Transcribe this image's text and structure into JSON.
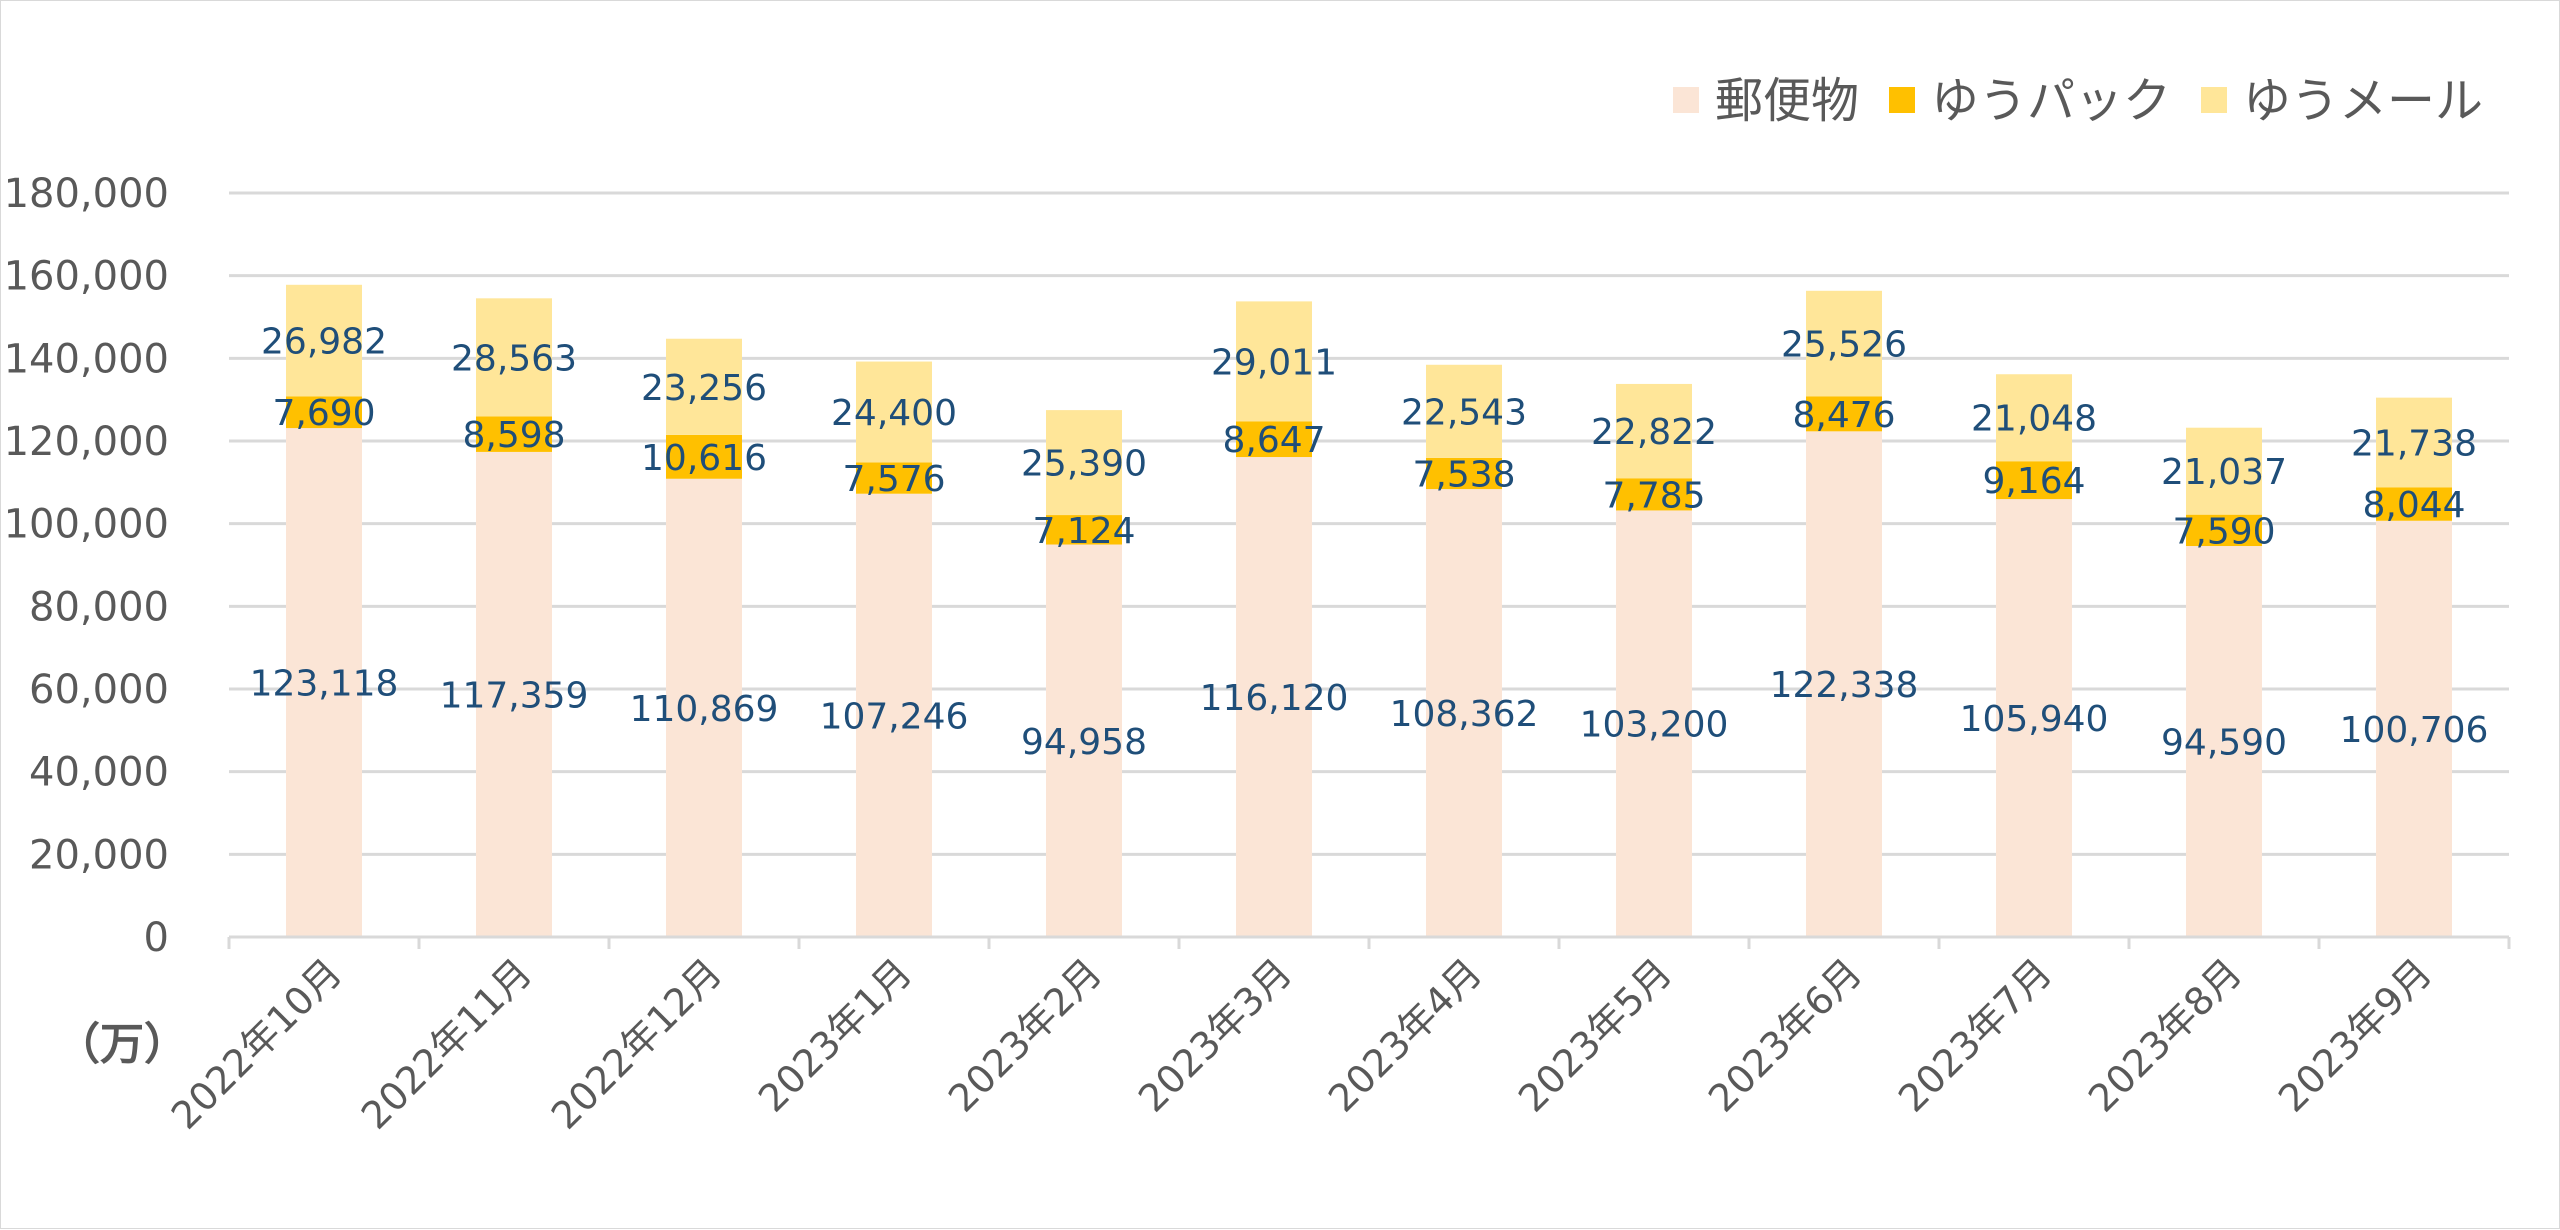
{
  "chart_data": {
    "type": "bar",
    "stacked": true,
    "unit_label": "（万）",
    "categories": [
      "2022年10月",
      "2022年11月",
      "2022年12月",
      "2023年1月",
      "2023年2月",
      "2023年3月",
      "2023年4月",
      "2023年5月",
      "2023年6月",
      "2023年7月",
      "2023年8月",
      "2023年9月"
    ],
    "series": [
      {
        "name": "郵便物",
        "color": "#fbe5d6",
        "values": [
          123118,
          117359,
          110869,
          107246,
          94958,
          116120,
          108362,
          103200,
          122338,
          105940,
          94590,
          100706
        ]
      },
      {
        "name": "ゆうパック",
        "color": "#ffc000",
        "values": [
          7690,
          8598,
          10616,
          7576,
          7124,
          8647,
          7538,
          7785,
          8476,
          9164,
          7590,
          8044
        ]
      },
      {
        "name": "ゆうメール",
        "color": "#ffe699",
        "values": [
          26982,
          28563,
          23256,
          24400,
          25390,
          29011,
          22543,
          22822,
          25526,
          21048,
          21037,
          21738
        ]
      }
    ],
    "ylim": [
      0,
      180000
    ],
    "ytick_step": 20000,
    "grid": true,
    "legend_position": "top-right",
    "label_color": "#1f4e79"
  }
}
